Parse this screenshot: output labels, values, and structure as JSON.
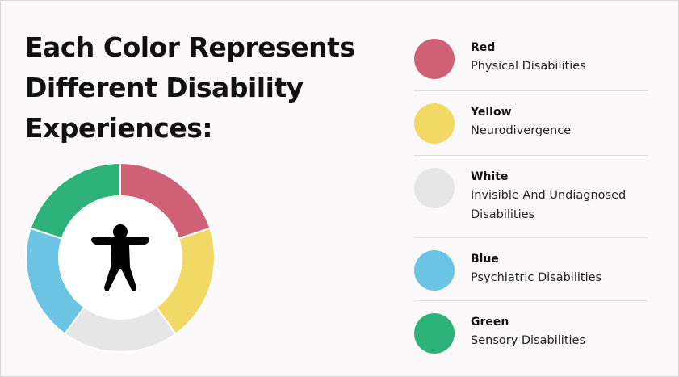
{
  "title_lines": [
    "Each Color Represents",
    "Different Disability",
    "Experiences:"
  ],
  "legend": [
    {
      "name": "Red",
      "description": "Physical Disabilities",
      "color": "#d06076"
    },
    {
      "name": "Yellow",
      "description": "Neurodivergence",
      "color": "#f2d864"
    },
    {
      "name": "White",
      "description": "Invisible And Undiagnosed Disabilities",
      "color": "#e6e6e6"
    },
    {
      "name": "Blue",
      "description": "Psychiatric Disabilities",
      "color": "#6cc4e4"
    },
    {
      "name": "Green",
      "description": "Sensory Disabilities",
      "color": "#2db27a"
    }
  ]
}
